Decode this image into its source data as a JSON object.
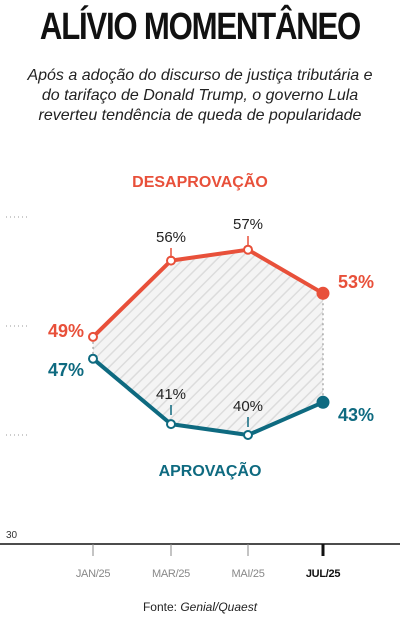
{
  "title": "ALÍVIO MOMENTÂNEO",
  "subtitle": "Após a adoção do discurso de justiça tributária e do tarifaço de Donald Trump, o governo Lula reverteu tendência de queda de popularidade",
  "source_prefix": "Fonte: ",
  "source_name": "Genial/Quaest",
  "colors": {
    "desaprovacao": "#e8503a",
    "aprovacao": "#0e6a80",
    "axis": "#111111",
    "tick": "#999999"
  },
  "chart_data": {
    "type": "line",
    "categories": [
      "JAN/25",
      "MAR/25",
      "MAI/25",
      "JUL/25"
    ],
    "ylim": [
      30,
      63
    ],
    "y_ticks": [
      30,
      40,
      50,
      60
    ],
    "y_tick_labels": [
      "30",
      "",
      "",
      ""
    ],
    "grid": false,
    "series": [
      {
        "name": "DESAPROVAÇÃO",
        "values": [
          49,
          56,
          57,
          53
        ],
        "labels": [
          "49%",
          "56%",
          "57%",
          "53%"
        ]
      },
      {
        "name": "APROVAÇÃO",
        "values": [
          47,
          41,
          40,
          43
        ],
        "labels": [
          "47%",
          "41%",
          "40%",
          "43%"
        ]
      }
    ]
  }
}
